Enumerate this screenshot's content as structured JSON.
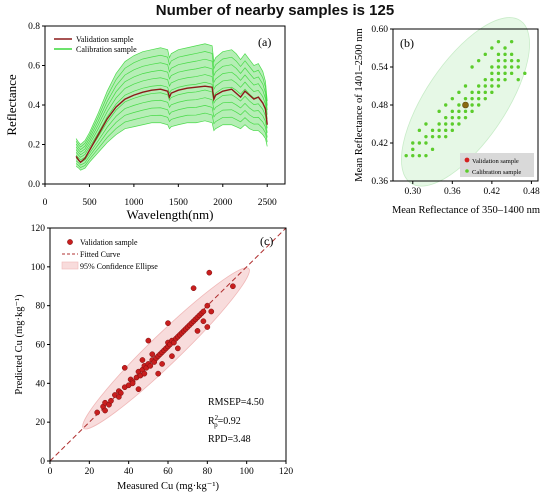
{
  "figure_title": "Number of nearby samples is 125",
  "chart_data": [
    {
      "id": "a",
      "type": "line",
      "panel_label": "(a)",
      "xlabel": "Wavelength(nm)",
      "ylabel": "Reflectance",
      "xlim": [
        0,
        2700
      ],
      "ylim": [
        0.0,
        0.8
      ],
      "xticks": [
        0,
        500,
        1000,
        1500,
        2000,
        2500
      ],
      "yticks": [
        0.0,
        0.2,
        0.4,
        0.6,
        0.8
      ],
      "ytick_labels": [
        "0.0",
        "0.2",
        "0.4",
        "0.6",
        "0.8"
      ],
      "legend": [
        "Validation sample",
        "Calibration sample"
      ],
      "colors": {
        "validation": "#8b1a1a",
        "calibration": "#3cd83c"
      },
      "series": [
        {
          "name": "Validation sample",
          "x": [
            350,
            380,
            400,
            450,
            500,
            600,
            700,
            800,
            900,
            1000,
            1100,
            1200,
            1300,
            1380,
            1400,
            1420,
            1500,
            1600,
            1700,
            1800,
            1880,
            1900,
            1920,
            2000,
            2100,
            2150,
            2200,
            2250,
            2300,
            2350,
            2400,
            2450,
            2480,
            2500
          ],
          "values": [
            0.14,
            0.12,
            0.11,
            0.13,
            0.17,
            0.25,
            0.33,
            0.39,
            0.43,
            0.45,
            0.465,
            0.475,
            0.48,
            0.47,
            0.44,
            0.46,
            0.475,
            0.485,
            0.49,
            0.495,
            0.49,
            0.43,
            0.45,
            0.47,
            0.48,
            0.46,
            0.44,
            0.47,
            0.45,
            0.43,
            0.44,
            0.41,
            0.38,
            0.3
          ]
        },
        {
          "name": "Calibration sample",
          "envelope_upper": [
            0.23,
            0.21,
            0.2,
            0.22,
            0.26,
            0.36,
            0.47,
            0.56,
            0.62,
            0.65,
            0.67,
            0.68,
            0.69,
            0.68,
            0.64,
            0.66,
            0.68,
            0.69,
            0.7,
            0.71,
            0.7,
            0.62,
            0.64,
            0.67,
            0.68,
            0.66,
            0.63,
            0.66,
            0.63,
            0.6,
            0.61,
            0.57,
            0.52,
            0.42
          ],
          "envelope_lower": [
            0.09,
            0.08,
            0.07,
            0.08,
            0.11,
            0.16,
            0.21,
            0.25,
            0.28,
            0.29,
            0.3,
            0.31,
            0.31,
            0.3,
            0.28,
            0.29,
            0.3,
            0.31,
            0.31,
            0.32,
            0.31,
            0.27,
            0.28,
            0.3,
            0.3,
            0.29,
            0.28,
            0.3,
            0.28,
            0.27,
            0.27,
            0.25,
            0.23,
            0.19
          ]
        }
      ]
    },
    {
      "id": "b",
      "type": "scatter",
      "panel_label": "(b)",
      "xlabel": "Mean Reflectance of 350–1400 nm",
      "ylabel": "Mean Reflectance of 1401–2500 nm",
      "xlim": [
        0.27,
        0.49
      ],
      "ylim": [
        0.36,
        0.6
      ],
      "xticks": [
        0.3,
        0.36,
        0.42,
        0.48
      ],
      "xtick_labels": [
        "0.30",
        "0.36",
        "0.42",
        "0.48"
      ],
      "yticks": [
        0.36,
        0.42,
        0.48,
        0.54,
        0.6
      ],
      "ytick_labels": [
        "0.36",
        "0.42",
        "0.48",
        "0.54",
        "0.60"
      ],
      "legend": [
        "Validation sample",
        "Calibration sample"
      ],
      "colors": {
        "validation": "#d42020",
        "calibration": "#5ccc2c",
        "ellipse": "#e6f8e6"
      },
      "validation_point": [
        0.38,
        0.48
      ],
      "calibration_points": [
        [
          0.3,
          0.4
        ],
        [
          0.31,
          0.4
        ],
        [
          0.32,
          0.4
        ],
        [
          0.33,
          0.41
        ],
        [
          0.3,
          0.42
        ],
        [
          0.31,
          0.42
        ],
        [
          0.32,
          0.43
        ],
        [
          0.33,
          0.43
        ],
        [
          0.34,
          0.43
        ],
        [
          0.35,
          0.43
        ],
        [
          0.34,
          0.44
        ],
        [
          0.35,
          0.44
        ],
        [
          0.36,
          0.44
        ],
        [
          0.33,
          0.44
        ],
        [
          0.34,
          0.45
        ],
        [
          0.35,
          0.45
        ],
        [
          0.36,
          0.45
        ],
        [
          0.37,
          0.45
        ],
        [
          0.35,
          0.46
        ],
        [
          0.36,
          0.46
        ],
        [
          0.37,
          0.46
        ],
        [
          0.38,
          0.46
        ],
        [
          0.36,
          0.47
        ],
        [
          0.37,
          0.47
        ],
        [
          0.38,
          0.47
        ],
        [
          0.39,
          0.47
        ],
        [
          0.37,
          0.48
        ],
        [
          0.39,
          0.48
        ],
        [
          0.4,
          0.48
        ],
        [
          0.38,
          0.49
        ],
        [
          0.39,
          0.49
        ],
        [
          0.4,
          0.49
        ],
        [
          0.41,
          0.49
        ],
        [
          0.39,
          0.5
        ],
        [
          0.4,
          0.5
        ],
        [
          0.41,
          0.5
        ],
        [
          0.42,
          0.5
        ],
        [
          0.4,
          0.51
        ],
        [
          0.41,
          0.51
        ],
        [
          0.42,
          0.51
        ],
        [
          0.43,
          0.51
        ],
        [
          0.41,
          0.52
        ],
        [
          0.42,
          0.52
        ],
        [
          0.43,
          0.52
        ],
        [
          0.44,
          0.52
        ],
        [
          0.42,
          0.53
        ],
        [
          0.43,
          0.53
        ],
        [
          0.44,
          0.53
        ],
        [
          0.45,
          0.53
        ],
        [
          0.42,
          0.54
        ],
        [
          0.43,
          0.54
        ],
        [
          0.44,
          0.54
        ],
        [
          0.45,
          0.54
        ],
        [
          0.46,
          0.54
        ],
        [
          0.43,
          0.55
        ],
        [
          0.44,
          0.55
        ],
        [
          0.45,
          0.55
        ],
        [
          0.46,
          0.55
        ],
        [
          0.43,
          0.56
        ],
        [
          0.44,
          0.56
        ],
        [
          0.45,
          0.56
        ],
        [
          0.42,
          0.57
        ],
        [
          0.44,
          0.57
        ],
        [
          0.45,
          0.58
        ],
        [
          0.43,
          0.58
        ],
        [
          0.41,
          0.56
        ],
        [
          0.4,
          0.55
        ],
        [
          0.39,
          0.54
        ],
        [
          0.47,
          0.53
        ],
        [
          0.46,
          0.52
        ],
        [
          0.38,
          0.51
        ],
        [
          0.37,
          0.5
        ],
        [
          0.36,
          0.49
        ],
        [
          0.35,
          0.48
        ],
        [
          0.34,
          0.47
        ],
        [
          0.32,
          0.45
        ],
        [
          0.31,
          0.44
        ],
        [
          0.29,
          0.4
        ],
        [
          0.3,
          0.41
        ],
        [
          0.32,
          0.42
        ]
      ]
    },
    {
      "id": "c",
      "type": "scatter",
      "panel_label": "(c)",
      "xlabel": "Measured Cu (mg·kg⁻¹)",
      "ylabel": "Predicted Cu (mg·kg⁻¹)",
      "xlim": [
        0,
        120
      ],
      "ylim": [
        0,
        120
      ],
      "xticks": [
        0,
        20,
        40,
        60,
        80,
        100,
        120
      ],
      "yticks": [
        0,
        20,
        40,
        60,
        80,
        100,
        120
      ],
      "legend": [
        "Validation sample",
        "Fitted Curve",
        "95% Confidence Ellipse"
      ],
      "colors": {
        "points": "#c81e1e",
        "fit": "#b03030",
        "ellipse": "#f8dcdc"
      },
      "stats": {
        "rmsep": "RMSEP=4.50",
        "r2_prefix": "R",
        "r2_sup": "2",
        "r2_sub": "p",
        "r2_value": "=0.92",
        "rpd": "RPD=3.48"
      },
      "points": [
        [
          24,
          25
        ],
        [
          27,
          28
        ],
        [
          28,
          30
        ],
        [
          30,
          29
        ],
        [
          31,
          31
        ],
        [
          33,
          34
        ],
        [
          35,
          36
        ],
        [
          36,
          35
        ],
        [
          38,
          38
        ],
        [
          40,
          39
        ],
        [
          41,
          42
        ],
        [
          42,
          41
        ],
        [
          44,
          43
        ],
        [
          45,
          46
        ],
        [
          46,
          44
        ],
        [
          47,
          47
        ],
        [
          48,
          45
        ],
        [
          48,
          49
        ],
        [
          49,
          48
        ],
        [
          50,
          50
        ],
        [
          51,
          49
        ],
        [
          52,
          52
        ],
        [
          53,
          51
        ],
        [
          54,
          53
        ],
        [
          55,
          54
        ],
        [
          56,
          55
        ],
        [
          57,
          56
        ],
        [
          58,
          57
        ],
        [
          59,
          58
        ],
        [
          60,
          59
        ],
        [
          60,
          61
        ],
        [
          61,
          60
        ],
        [
          62,
          62
        ],
        [
          63,
          61
        ],
        [
          64,
          63
        ],
        [
          65,
          64
        ],
        [
          66,
          65
        ],
        [
          67,
          66
        ],
        [
          68,
          67
        ],
        [
          69,
          68
        ],
        [
          70,
          69
        ],
        [
          71,
          70
        ],
        [
          72,
          71
        ],
        [
          73,
          72
        ],
        [
          74,
          73
        ],
        [
          75,
          74
        ],
        [
          76,
          75
        ],
        [
          77,
          76
        ],
        [
          78,
          77
        ],
        [
          80,
          80
        ],
        [
          81,
          97
        ],
        [
          73,
          89
        ],
        [
          93,
          90
        ],
        [
          60,
          71
        ],
        [
          50,
          62
        ],
        [
          38,
          48
        ],
        [
          45,
          37
        ],
        [
          55,
          45
        ],
        [
          65,
          58
        ],
        [
          75,
          67
        ],
        [
          78,
          72
        ],
        [
          82,
          77
        ],
        [
          80,
          69
        ],
        [
          62,
          54
        ],
        [
          57,
          50
        ],
        [
          52,
          55
        ],
        [
          47,
          52
        ],
        [
          42,
          40
        ],
        [
          35,
          33
        ],
        [
          28,
          26
        ]
      ]
    }
  ]
}
